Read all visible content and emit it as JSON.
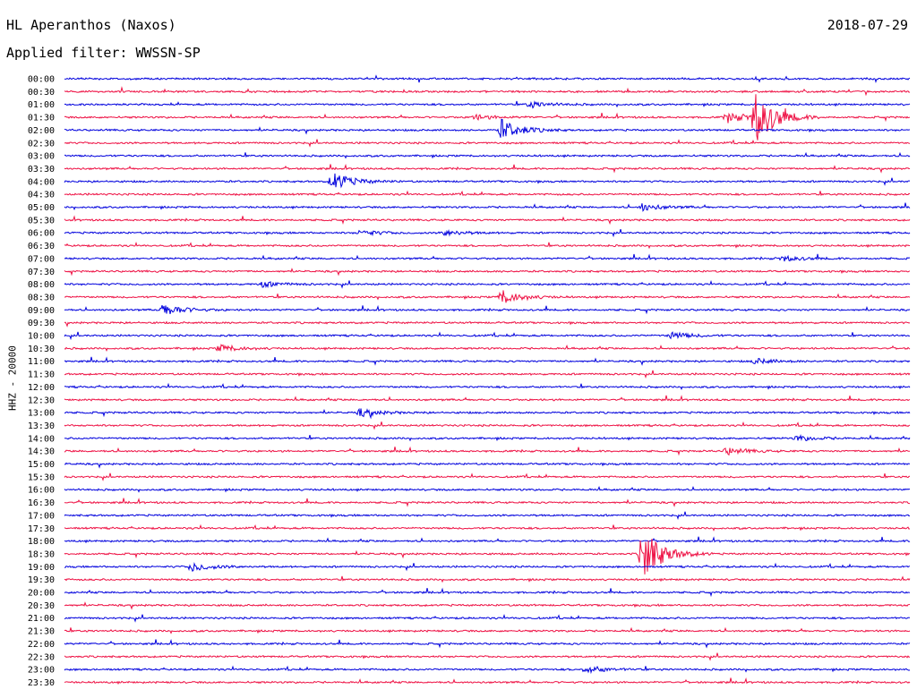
{
  "header": {
    "station": "HL Aperanthos (Naxos)",
    "date": "2018-07-29",
    "filter": "Applied filter: WWSSN-SP",
    "channel": "HHZ - 20000"
  },
  "colors": {
    "even_trace": "#0000dd",
    "odd_trace": "#ee1144",
    "text": "#000000",
    "background": "#ffffff"
  },
  "chart_data": {
    "type": "line",
    "title": "HL Aperanthos (Naxos)",
    "subtitle": "Applied filter: WWSSN-SP",
    "ylabel": "HHZ - 20000",
    "xlabel": "",
    "rows": [
      "00:00",
      "00:30",
      "01:00",
      "01:30",
      "02:00",
      "02:30",
      "03:00",
      "03:30",
      "04:00",
      "04:30",
      "05:00",
      "05:30",
      "06:00",
      "06:30",
      "07:00",
      "07:30",
      "08:00",
      "08:30",
      "09:00",
      "09:30",
      "10:00",
      "10:30",
      "11:00",
      "11:30",
      "12:00",
      "12:30",
      "13:00",
      "13:30",
      "14:00",
      "14:30",
      "15:00",
      "15:30",
      "16:00",
      "16:30",
      "17:00",
      "17:30",
      "18:00",
      "18:30",
      "19:00",
      "19:30",
      "20:00",
      "20:30",
      "21:00",
      "21:30",
      "22:00",
      "22:30",
      "23:00",
      "23:30"
    ],
    "row_minutes": 30,
    "events": [
      {
        "row": "01:00",
        "minute": 16.5,
        "amplitude": 3.5
      },
      {
        "row": "01:30",
        "minute": 14.5,
        "amplitude": 3
      },
      {
        "row": "01:30",
        "minute": 23.5,
        "amplitude": 6
      },
      {
        "row": "02:00",
        "minute": 15.5,
        "amplitude": 12
      },
      {
        "row": "01:30",
        "minute": 24.5,
        "amplitude": 30
      },
      {
        "row": "04:00",
        "minute": 9.5,
        "amplitude": 10
      },
      {
        "row": "05:00",
        "minute": 20.5,
        "amplitude": 4
      },
      {
        "row": "06:00",
        "minute": 10.5,
        "amplitude": 3
      },
      {
        "row": "06:00",
        "minute": 13.5,
        "amplitude": 3
      },
      {
        "row": "07:00",
        "minute": 25.5,
        "amplitude": 3
      },
      {
        "row": "08:00",
        "minute": 7.0,
        "amplitude": 3
      },
      {
        "row": "08:30",
        "minute": 15.5,
        "amplitude": 8
      },
      {
        "row": "09:00",
        "minute": 3.5,
        "amplitude": 7
      },
      {
        "row": "10:00",
        "minute": 21.5,
        "amplitude": 4
      },
      {
        "row": "10:30",
        "minute": 5.5,
        "amplitude": 4
      },
      {
        "row": "11:00",
        "minute": 24.5,
        "amplitude": 3
      },
      {
        "row": "13:00",
        "minute": 10.5,
        "amplitude": 4
      },
      {
        "row": "14:00",
        "minute": 26.0,
        "amplitude": 3
      },
      {
        "row": "14:30",
        "minute": 23.5,
        "amplitude": 4
      },
      {
        "row": "18:30",
        "minute": 20.5,
        "amplitude": 30
      },
      {
        "row": "19:00",
        "minute": 4.5,
        "amplitude": 5
      },
      {
        "row": "23:00",
        "minute": 18.5,
        "amplitude": 4
      }
    ]
  }
}
